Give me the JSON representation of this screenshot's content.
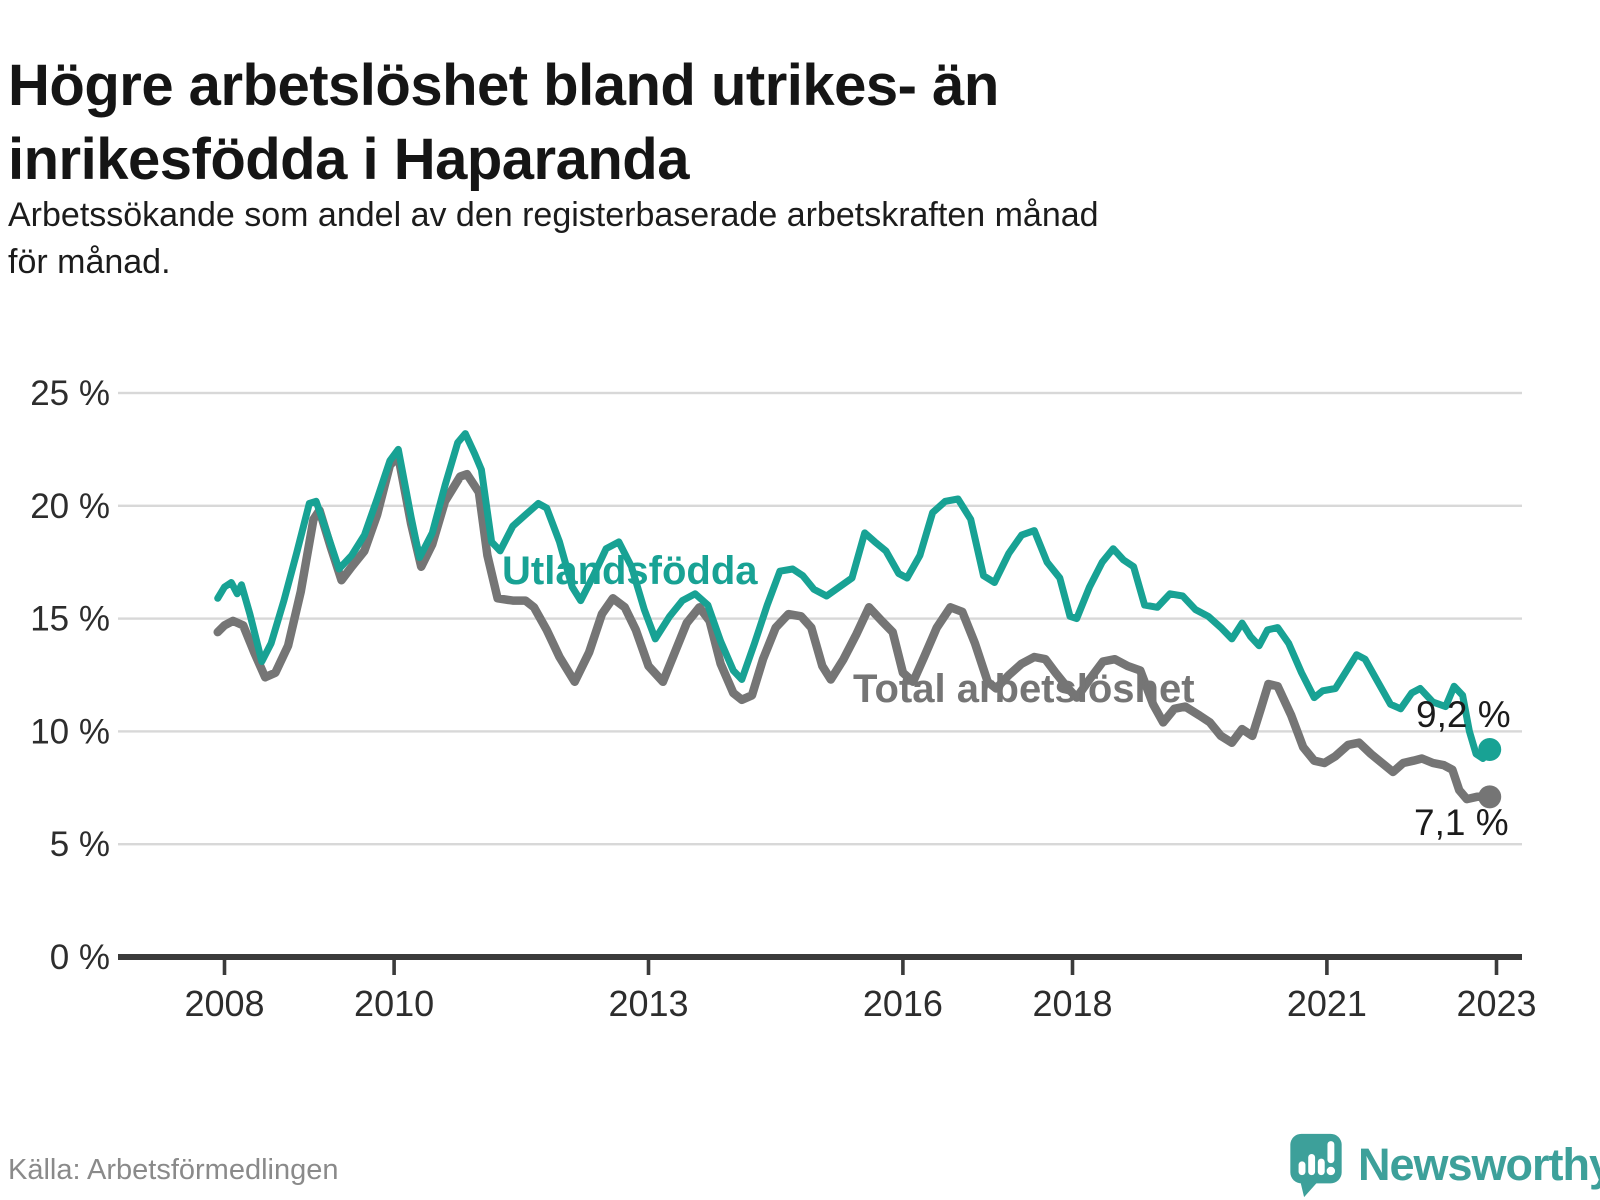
{
  "header": {
    "title_lines": [
      "Högre arbetslöshet bland utrikes- än",
      "inrikesfödda i Haparanda"
    ],
    "subtitle_lines": [
      "Arbetssökande som andel av den registerbaserade arbetskraften månad",
      "för månad."
    ]
  },
  "footer": {
    "source": "Källa: Arbetsförmedlingen",
    "logo_text": "Newsworthy",
    "logo_color": "#3da09a"
  },
  "chart_data": {
    "type": "line",
    "title": "Högre arbetslöshet bland utrikes- än inrikesfödda i Haparanda",
    "subtitle": "Arbetssökande som andel av den registerbaserade arbetskraften månad för månad.",
    "xlabel": "",
    "ylabel": "",
    "grid": true,
    "x_range": [
      2007.9,
      2023.3
    ],
    "ylim": [
      0,
      25
    ],
    "y_axis": {
      "ticks": [
        {
          "value": 0,
          "label": "0 %"
        },
        {
          "value": 5,
          "label": "5 %"
        },
        {
          "value": 10,
          "label": "10 %"
        },
        {
          "value": 15,
          "label": "15 %"
        },
        {
          "value": 20,
          "label": "20 %"
        },
        {
          "value": 25,
          "label": "25 %"
        }
      ]
    },
    "x_axis": {
      "ticks": [
        {
          "value": 2008,
          "label": "2008"
        },
        {
          "value": 2010,
          "label": "2010"
        },
        {
          "value": 2013,
          "label": "2013"
        },
        {
          "value": 2016,
          "label": "2016"
        },
        {
          "value": 2018,
          "label": "2018"
        },
        {
          "value": 2021,
          "label": "2021"
        },
        {
          "value": 2023,
          "label": "2023"
        }
      ]
    },
    "series": [
      {
        "name": "Utlandsfödda",
        "color": "#18a294",
        "stroke_width": 7,
        "end_label": "9,2 %",
        "end_value": 9.2,
        "points": [
          [
            2007.92,
            15.9
          ],
          [
            2008.0,
            16.4
          ],
          [
            2008.08,
            16.6
          ],
          [
            2008.15,
            16.1
          ],
          [
            2008.2,
            16.5
          ],
          [
            2008.3,
            15.2
          ],
          [
            2008.44,
            13.1
          ],
          [
            2008.55,
            13.9
          ],
          [
            2008.7,
            15.8
          ],
          [
            2008.85,
            17.9
          ],
          [
            2009.0,
            20.1
          ],
          [
            2009.08,
            20.2
          ],
          [
            2009.2,
            18.9
          ],
          [
            2009.35,
            17.2
          ],
          [
            2009.5,
            17.8
          ],
          [
            2009.65,
            18.7
          ],
          [
            2009.8,
            20.3
          ],
          [
            2009.95,
            22.0
          ],
          [
            2010.05,
            22.5
          ],
          [
            2010.2,
            19.5
          ],
          [
            2010.3,
            17.7
          ],
          [
            2010.45,
            18.8
          ],
          [
            2010.6,
            20.9
          ],
          [
            2010.75,
            22.8
          ],
          [
            2010.84,
            23.2
          ],
          [
            2010.95,
            22.3
          ],
          [
            2011.03,
            21.6
          ],
          [
            2011.15,
            18.4
          ],
          [
            2011.25,
            18.0
          ],
          [
            2011.4,
            19.1
          ],
          [
            2011.55,
            19.6
          ],
          [
            2011.7,
            20.1
          ],
          [
            2011.8,
            19.9
          ],
          [
            2011.95,
            18.4
          ],
          [
            2012.1,
            16.4
          ],
          [
            2012.2,
            15.8
          ],
          [
            2012.35,
            16.9
          ],
          [
            2012.5,
            18.1
          ],
          [
            2012.65,
            18.4
          ],
          [
            2012.8,
            17.3
          ],
          [
            2012.95,
            15.4
          ],
          [
            2013.08,
            14.1
          ],
          [
            2013.25,
            15.1
          ],
          [
            2013.4,
            15.8
          ],
          [
            2013.55,
            16.1
          ],
          [
            2013.7,
            15.6
          ],
          [
            2013.85,
            14.0
          ],
          [
            2014.0,
            12.7
          ],
          [
            2014.1,
            12.3
          ],
          [
            2014.25,
            13.9
          ],
          [
            2014.4,
            15.6
          ],
          [
            2014.55,
            17.1
          ],
          [
            2014.7,
            17.2
          ],
          [
            2014.82,
            16.9
          ],
          [
            2014.95,
            16.3
          ],
          [
            2015.1,
            16.0
          ],
          [
            2015.25,
            16.4
          ],
          [
            2015.4,
            16.8
          ],
          [
            2015.55,
            18.8
          ],
          [
            2015.67,
            18.4
          ],
          [
            2015.8,
            18.0
          ],
          [
            2015.95,
            17.0
          ],
          [
            2016.05,
            16.8
          ],
          [
            2016.2,
            17.8
          ],
          [
            2016.35,
            19.7
          ],
          [
            2016.5,
            20.2
          ],
          [
            2016.65,
            20.3
          ],
          [
            2016.8,
            19.4
          ],
          [
            2016.95,
            16.9
          ],
          [
            2017.08,
            16.6
          ],
          [
            2017.25,
            17.9
          ],
          [
            2017.4,
            18.7
          ],
          [
            2017.55,
            18.9
          ],
          [
            2017.7,
            17.5
          ],
          [
            2017.85,
            16.8
          ],
          [
            2017.97,
            15.1
          ],
          [
            2018.05,
            15.0
          ],
          [
            2018.2,
            16.4
          ],
          [
            2018.35,
            17.5
          ],
          [
            2018.48,
            18.1
          ],
          [
            2018.6,
            17.6
          ],
          [
            2018.72,
            17.3
          ],
          [
            2018.85,
            15.6
          ],
          [
            2019.0,
            15.5
          ],
          [
            2019.15,
            16.1
          ],
          [
            2019.3,
            16.0
          ],
          [
            2019.45,
            15.4
          ],
          [
            2019.6,
            15.1
          ],
          [
            2019.75,
            14.6
          ],
          [
            2019.88,
            14.1
          ],
          [
            2020.0,
            14.8
          ],
          [
            2020.1,
            14.2
          ],
          [
            2020.2,
            13.8
          ],
          [
            2020.3,
            14.5
          ],
          [
            2020.42,
            14.6
          ],
          [
            2020.55,
            13.9
          ],
          [
            2020.7,
            12.6
          ],
          [
            2020.85,
            11.5
          ],
          [
            2020.95,
            11.8
          ],
          [
            2021.1,
            11.9
          ],
          [
            2021.2,
            12.5
          ],
          [
            2021.35,
            13.4
          ],
          [
            2021.45,
            13.2
          ],
          [
            2021.6,
            12.2
          ],
          [
            2021.75,
            11.2
          ],
          [
            2021.87,
            11.0
          ],
          [
            2022.0,
            11.7
          ],
          [
            2022.1,
            11.9
          ],
          [
            2022.25,
            11.3
          ],
          [
            2022.4,
            11.1
          ],
          [
            2022.5,
            12.0
          ],
          [
            2022.6,
            11.6
          ],
          [
            2022.68,
            10.0
          ],
          [
            2022.76,
            9.0
          ],
          [
            2022.84,
            8.8
          ],
          [
            2022.92,
            9.2
          ]
        ]
      },
      {
        "name": "Total arbetslöshet",
        "color": "#757575",
        "stroke_width": 8.5,
        "end_label": "7,1 %",
        "end_value": 7.1,
        "points": [
          [
            2007.92,
            14.4
          ],
          [
            2008.0,
            14.7
          ],
          [
            2008.1,
            14.9
          ],
          [
            2008.22,
            14.7
          ],
          [
            2008.35,
            13.5
          ],
          [
            2008.48,
            12.4
          ],
          [
            2008.6,
            12.6
          ],
          [
            2008.75,
            13.8
          ],
          [
            2008.9,
            16.2
          ],
          [
            2009.05,
            19.4
          ],
          [
            2009.12,
            19.8
          ],
          [
            2009.25,
            18.2
          ],
          [
            2009.38,
            16.7
          ],
          [
            2009.5,
            17.3
          ],
          [
            2009.65,
            18.0
          ],
          [
            2009.8,
            19.6
          ],
          [
            2009.95,
            21.8
          ],
          [
            2010.05,
            22.2
          ],
          [
            2010.2,
            19.2
          ],
          [
            2010.32,
            17.3
          ],
          [
            2010.45,
            18.3
          ],
          [
            2010.6,
            20.2
          ],
          [
            2010.78,
            21.3
          ],
          [
            2010.86,
            21.4
          ],
          [
            2011.0,
            20.6
          ],
          [
            2011.1,
            17.8
          ],
          [
            2011.22,
            15.9
          ],
          [
            2011.4,
            15.8
          ],
          [
            2011.55,
            15.8
          ],
          [
            2011.65,
            15.5
          ],
          [
            2011.8,
            14.5
          ],
          [
            2011.95,
            13.3
          ],
          [
            2012.13,
            12.2
          ],
          [
            2012.3,
            13.5
          ],
          [
            2012.45,
            15.2
          ],
          [
            2012.58,
            15.9
          ],
          [
            2012.72,
            15.5
          ],
          [
            2012.85,
            14.5
          ],
          [
            2013.0,
            12.9
          ],
          [
            2013.17,
            12.2
          ],
          [
            2013.3,
            13.4
          ],
          [
            2013.45,
            14.8
          ],
          [
            2013.6,
            15.5
          ],
          [
            2013.72,
            14.9
          ],
          [
            2013.85,
            13.0
          ],
          [
            2014.0,
            11.7
          ],
          [
            2014.1,
            11.4
          ],
          [
            2014.22,
            11.6
          ],
          [
            2014.35,
            13.2
          ],
          [
            2014.5,
            14.6
          ],
          [
            2014.65,
            15.2
          ],
          [
            2014.8,
            15.1
          ],
          [
            2014.92,
            14.6
          ],
          [
            2015.05,
            12.9
          ],
          [
            2015.15,
            12.3
          ],
          [
            2015.3,
            13.2
          ],
          [
            2015.45,
            14.3
          ],
          [
            2015.6,
            15.5
          ],
          [
            2015.75,
            14.9
          ],
          [
            2015.88,
            14.4
          ],
          [
            2016.0,
            12.6
          ],
          [
            2016.12,
            12.2
          ],
          [
            2016.25,
            13.3
          ],
          [
            2016.4,
            14.6
          ],
          [
            2016.56,
            15.5
          ],
          [
            2016.7,
            15.3
          ],
          [
            2016.85,
            13.9
          ],
          [
            2017.0,
            12.2
          ],
          [
            2017.1,
            11.9
          ],
          [
            2017.25,
            12.5
          ],
          [
            2017.4,
            13.0
          ],
          [
            2017.55,
            13.3
          ],
          [
            2017.68,
            13.2
          ],
          [
            2017.8,
            12.6
          ],
          [
            2017.95,
            11.9
          ],
          [
            2018.05,
            11.5
          ],
          [
            2018.2,
            12.3
          ],
          [
            2018.36,
            13.1
          ],
          [
            2018.5,
            13.2
          ],
          [
            2018.65,
            12.9
          ],
          [
            2018.8,
            12.7
          ],
          [
            2018.95,
            11.2
          ],
          [
            2019.07,
            10.4
          ],
          [
            2019.2,
            11.0
          ],
          [
            2019.33,
            11.1
          ],
          [
            2019.5,
            10.7
          ],
          [
            2019.62,
            10.4
          ],
          [
            2019.75,
            9.8
          ],
          [
            2019.88,
            9.5
          ],
          [
            2020.0,
            10.1
          ],
          [
            2020.12,
            9.8
          ],
          [
            2020.22,
            11.0
          ],
          [
            2020.31,
            12.1
          ],
          [
            2020.42,
            12.0
          ],
          [
            2020.58,
            10.7
          ],
          [
            2020.72,
            9.3
          ],
          [
            2020.85,
            8.7
          ],
          [
            2020.97,
            8.6
          ],
          [
            2021.1,
            8.9
          ],
          [
            2021.25,
            9.4
          ],
          [
            2021.38,
            9.5
          ],
          [
            2021.52,
            9.0
          ],
          [
            2021.65,
            8.6
          ],
          [
            2021.78,
            8.2
          ],
          [
            2021.9,
            8.6
          ],
          [
            2022.02,
            8.7
          ],
          [
            2022.12,
            8.8
          ],
          [
            2022.25,
            8.6
          ],
          [
            2022.38,
            8.5
          ],
          [
            2022.48,
            8.3
          ],
          [
            2022.56,
            7.4
          ],
          [
            2022.65,
            7.0
          ],
          [
            2022.77,
            7.1
          ],
          [
            2022.92,
            7.1
          ]
        ]
      }
    ]
  }
}
